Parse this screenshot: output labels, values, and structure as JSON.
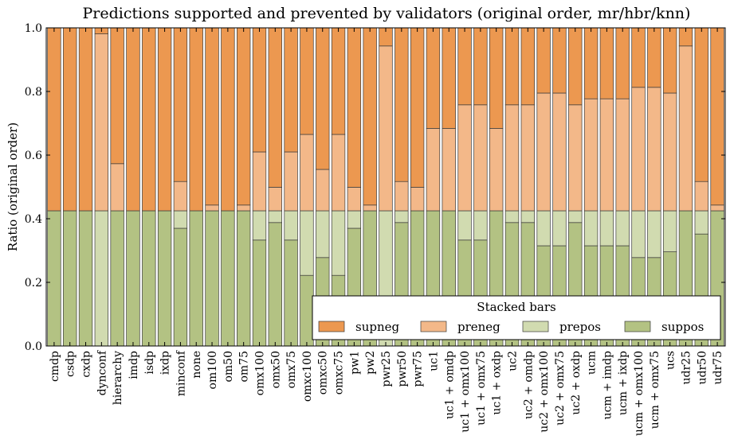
{
  "chart_data": {
    "type": "bar",
    "stacked": true,
    "title": "Predictions supported and prevented by validators (original order, mr/hbr/knn)",
    "ylabel": "Ratio (original order)",
    "xlabel": "",
    "ylim": [
      0,
      1.0
    ],
    "yticks": [
      "0.0",
      "0.2",
      "0.4",
      "0.6",
      "0.8",
      "1.0"
    ],
    "grid": false,
    "legend": {
      "title": "Stacked bars",
      "placement": "lower-right",
      "ncol": 4
    },
    "categories": [
      "cmdp",
      "csdp",
      "cxdp",
      "dynconf",
      "hierarchy",
      "imdp",
      "isdp",
      "ixdp",
      "minconf",
      "none",
      "om100",
      "om50",
      "om75",
      "omx100",
      "omx50",
      "omx75",
      "omxc100",
      "omxc50",
      "omxc75",
      "pw1",
      "pw2",
      "pwr25",
      "pwr50",
      "pwr75",
      "uc1",
      "uc1 + omdp",
      "uc1 + omx100",
      "uc1 + omx75",
      "uc1 + oxdp",
      "uc2",
      "uc2 + omdp",
      "uc2 + omx100",
      "uc2 + omx75",
      "uc2 + oxdp",
      "ucm",
      "ucm + imdp",
      "ucm + ixdp",
      "ucm + omx100",
      "ucm + omx75",
      "ucs",
      "udr25",
      "udr50",
      "udr75"
    ],
    "series": [
      {
        "name": "suppos",
        "color": "#b3c283",
        "values": [
          0.425,
          0.425,
          0.425,
          0.0,
          0.425,
          0.425,
          0.425,
          0.425,
          0.37,
          0.425,
          0.425,
          0.425,
          0.425,
          0.333,
          0.388,
          0.333,
          0.222,
          0.278,
          0.222,
          0.37,
          0.425,
          0.0,
          0.388,
          0.425,
          0.425,
          0.425,
          0.333,
          0.333,
          0.425,
          0.388,
          0.388,
          0.315,
          0.315,
          0.388,
          0.315,
          0.315,
          0.315,
          0.278,
          0.278,
          0.296,
          0.425,
          0.352,
          0.425
        ]
      },
      {
        "name": "prepos",
        "color": "#d1dbb0",
        "values": [
          0.0,
          0.0,
          0.0,
          0.425,
          0.0,
          0.0,
          0.0,
          0.0,
          0.055,
          0.0,
          0.0,
          0.0,
          0.0,
          0.092,
          0.037,
          0.092,
          0.203,
          0.147,
          0.203,
          0.055,
          0.0,
          0.425,
          0.037,
          0.0,
          0.0,
          0.0,
          0.092,
          0.092,
          0.0,
          0.037,
          0.037,
          0.11,
          0.11,
          0.037,
          0.11,
          0.11,
          0.11,
          0.147,
          0.147,
          0.129,
          0.0,
          0.073,
          0.0
        ]
      },
      {
        "name": "preneg",
        "color": "#f3b889",
        "values": [
          0.0,
          0.0,
          0.0,
          0.556,
          0.148,
          0.0,
          0.0,
          0.0,
          0.092,
          0.0,
          0.018,
          0.0,
          0.018,
          0.185,
          0.074,
          0.185,
          0.24,
          0.13,
          0.24,
          0.074,
          0.018,
          0.518,
          0.092,
          0.074,
          0.259,
          0.259,
          0.333,
          0.333,
          0.259,
          0.333,
          0.333,
          0.37,
          0.37,
          0.333,
          0.352,
          0.352,
          0.352,
          0.388,
          0.388,
          0.37,
          0.518,
          0.092,
          0.018
        ]
      },
      {
        "name": "supneg",
        "color": "#ec9850",
        "values": [
          0.575,
          0.575,
          0.575,
          0.019,
          0.427,
          0.575,
          0.575,
          0.575,
          0.483,
          0.575,
          0.557,
          0.575,
          0.557,
          0.39,
          0.501,
          0.39,
          0.335,
          0.445,
          0.335,
          0.501,
          0.557,
          0.057,
          0.483,
          0.501,
          0.316,
          0.316,
          0.242,
          0.242,
          0.316,
          0.242,
          0.242,
          0.205,
          0.205,
          0.242,
          0.223,
          0.223,
          0.223,
          0.187,
          0.187,
          0.205,
          0.057,
          0.483,
          0.557
        ]
      }
    ],
    "legend_order": [
      "supneg",
      "preneg",
      "prepos",
      "suppos"
    ]
  }
}
